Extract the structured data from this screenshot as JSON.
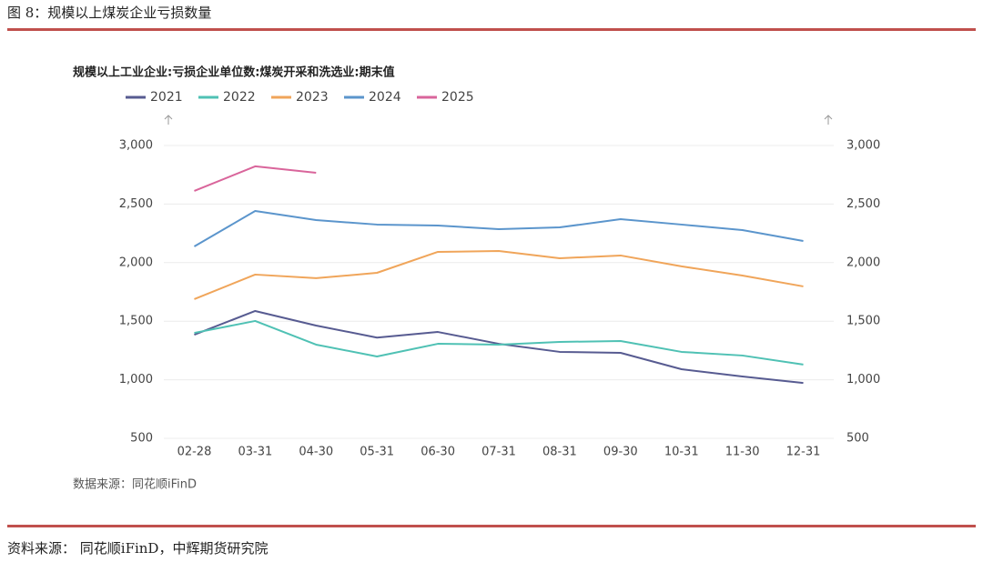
{
  "header": {
    "title": "图 8：规模以上煤炭企业亏损数量"
  },
  "chart_data": {
    "type": "line",
    "title": "规模以上工业企业:亏损企业单位数:煤炭开采和洗选业:期末值",
    "categories": [
      "02-28",
      "03-31",
      "04-30",
      "05-31",
      "06-30",
      "07-31",
      "08-31",
      "09-30",
      "10-31",
      "11-30",
      "12-31"
    ],
    "series": [
      {
        "name": "2021",
        "color": "#575b91",
        "values": [
          1385,
          1587,
          1463,
          1360,
          1408,
          1307,
          1238,
          1230,
          1090,
          1028,
          973
        ]
      },
      {
        "name": "2022",
        "color": "#4fc1b4",
        "values": [
          1400,
          1502,
          1300,
          1199,
          1307,
          1300,
          1323,
          1331,
          1238,
          1207,
          1130
        ]
      },
      {
        "name": "2023",
        "color": "#f0a55a",
        "values": [
          1688,
          1898,
          1867,
          1913,
          2092,
          2099,
          2037,
          2061,
          1968,
          1890,
          1797
        ]
      },
      {
        "name": "2024",
        "color": "#5b95cc",
        "values": [
          2138,
          2441,
          2363,
          2325,
          2317,
          2286,
          2301,
          2371,
          2325,
          2278,
          2185
        ]
      },
      {
        "name": "2025",
        "color": "#d9659b",
        "values": [
          2612,
          2822,
          2767,
          null,
          null,
          null,
          null,
          null,
          null,
          null,
          null
        ]
      }
    ],
    "ylim": [
      500,
      3000
    ],
    "yticks": [
      500,
      {
        "value": 1000,
        "label": "1,000"
      },
      {
        "value": 1500,
        "label": "1,500"
      },
      {
        "value": 2000,
        "label": "2,000"
      },
      {
        "value": 2500,
        "label": "2,500"
      },
      {
        "value": 3000,
        "label": "3,000"
      }
    ],
    "y2lim": [
      500,
      3000
    ],
    "y2ticks": [
      500,
      {
        "value": 1000,
        "label": "1,000"
      },
      {
        "value": 1500,
        "label": "1,500"
      },
      {
        "value": 2000,
        "label": "2,000"
      },
      {
        "value": 2500,
        "label": "2,500"
      },
      {
        "value": 3000,
        "label": "3,000"
      }
    ],
    "grid": true,
    "source": "数据来源：同花顺iFinD"
  },
  "footer": {
    "source": "资料来源： 同花顺iFinD，中辉期货研究院"
  }
}
